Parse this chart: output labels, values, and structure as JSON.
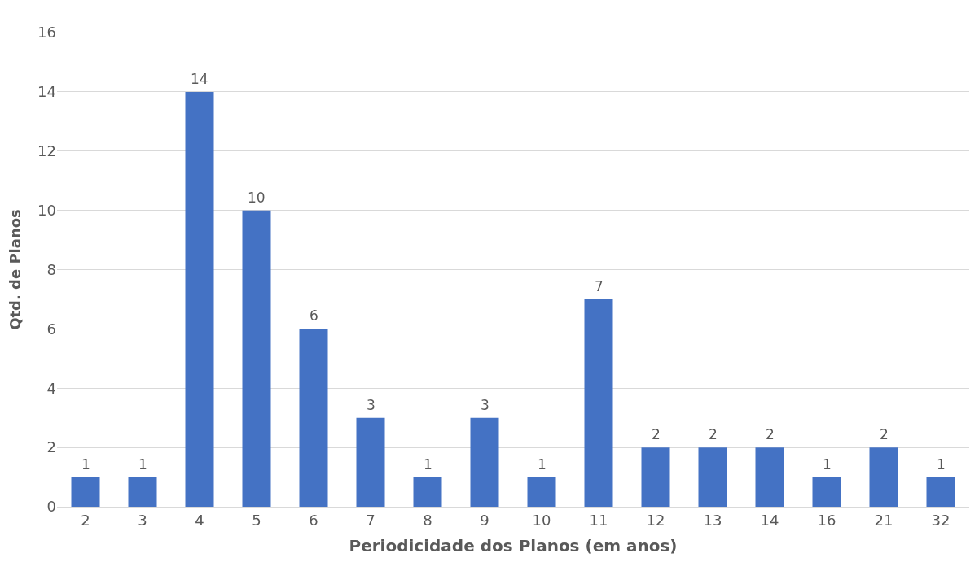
{
  "chart_data": {
    "type": "bar",
    "xlabel": "Periodicidade dos Planos (em anos)",
    "ylabel": "Qtd. de Planos",
    "categories": [
      "2",
      "3",
      "4",
      "5",
      "6",
      "7",
      "8",
      "9",
      "10",
      "11",
      "12",
      "13",
      "14",
      "16",
      "21",
      "32"
    ],
    "values": [
      1,
      1,
      14,
      10,
      6,
      3,
      1,
      3,
      1,
      7,
      2,
      2,
      2,
      1,
      2,
      1
    ],
    "color": "#4472c4",
    "ylim": [
      0,
      16
    ],
    "yticks": [
      0,
      2,
      4,
      6,
      8,
      10,
      12,
      14,
      16
    ],
    "grid": "y",
    "data_labels": true
  }
}
